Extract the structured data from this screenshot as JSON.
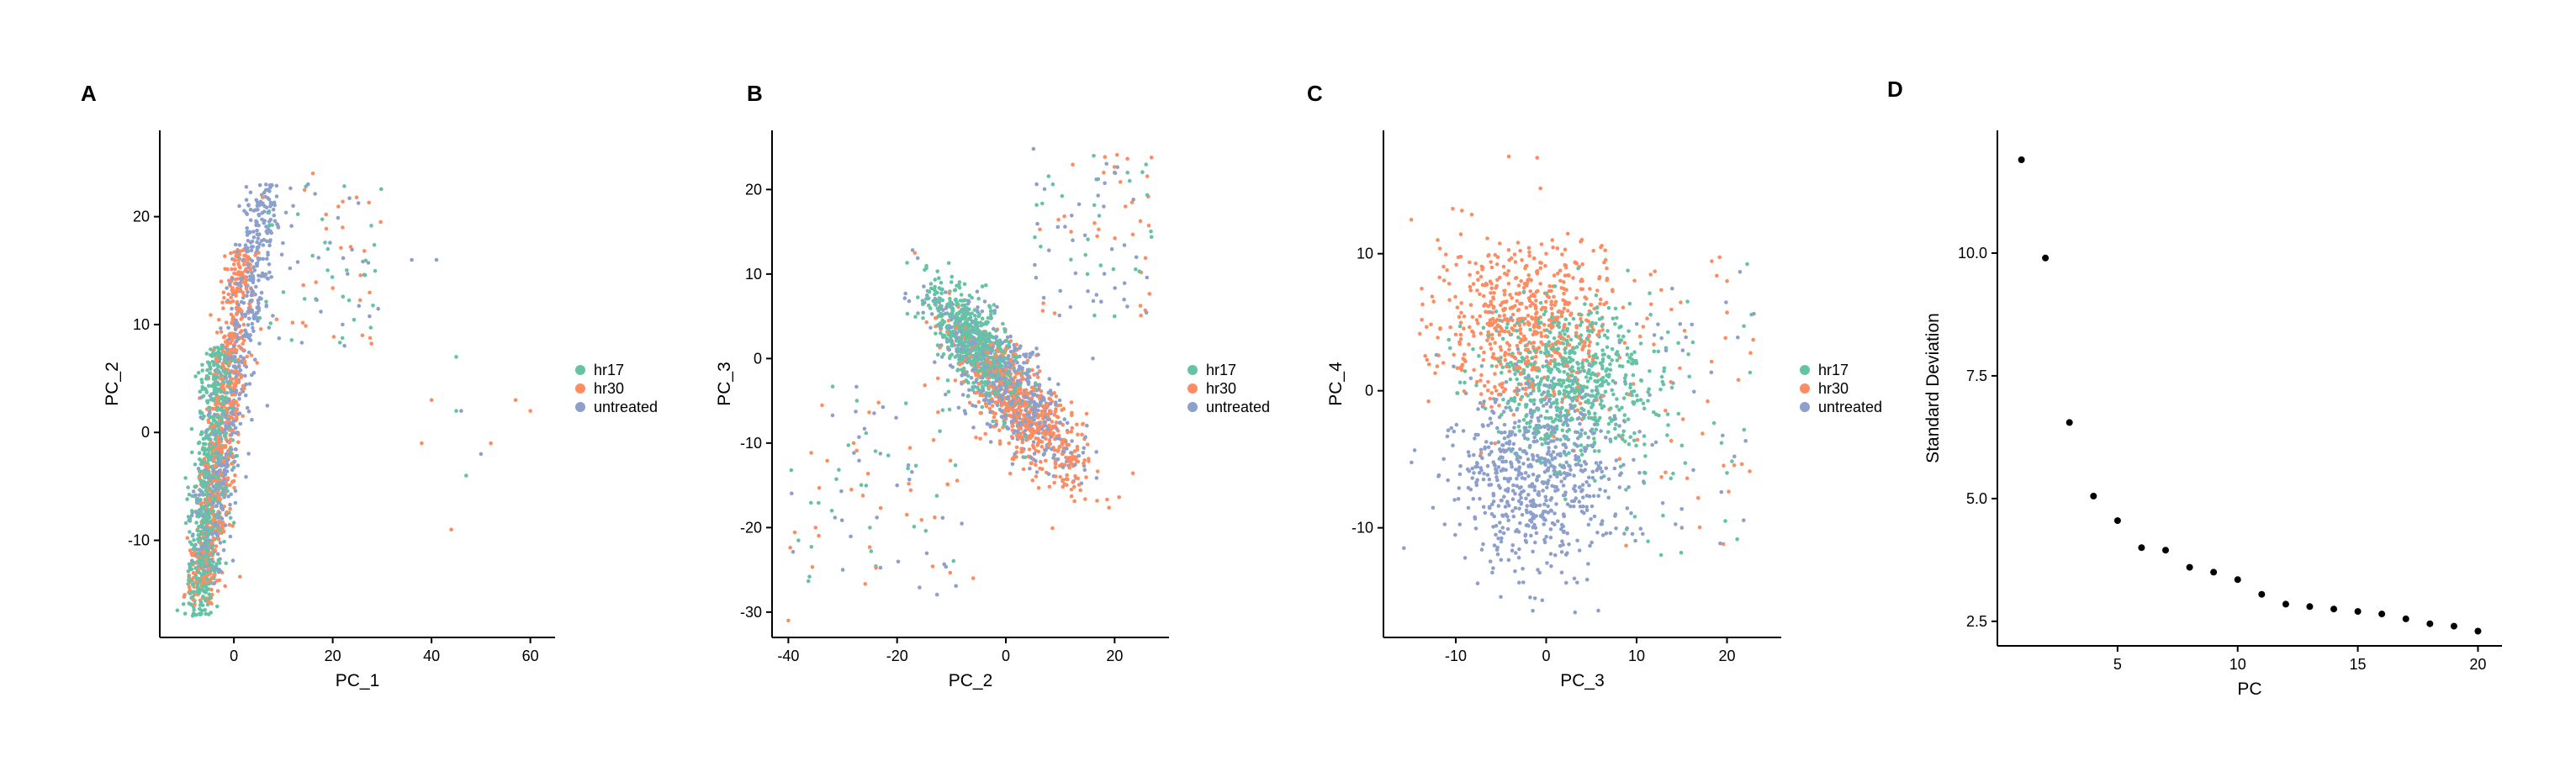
{
  "figure": {
    "panel_letters": [
      "A",
      "B",
      "C",
      "D"
    ]
  },
  "colors": {
    "hr17": "#66c2a5",
    "hr30": "#fc8d62",
    "untreated": "#8da0cb",
    "elbow_point": "#000000"
  },
  "chart_data": [
    {
      "type": "scatter",
      "panel": "A",
      "xlabel": "PC_1",
      "ylabel": "PC_2",
      "xlim": [
        -15,
        65
      ],
      "ylim": [
        -19,
        28
      ],
      "xticks": [
        0,
        20,
        40,
        60
      ],
      "yticks": [
        -10,
        0,
        10,
        20
      ],
      "legend": {
        "placement": "right",
        "entries": [
          "hr17",
          "hr30",
          "untreated"
        ]
      },
      "grid": false,
      "series": [
        {
          "name": "hr17",
          "n_points": 700,
          "points": [
            [
              -6,
              -8
            ],
            [
              -5,
              -12
            ],
            [
              -4,
              -4
            ],
            [
              -3,
              0
            ],
            [
              -5,
              -15
            ],
            [
              -7,
              -10
            ],
            [
              -2,
              2
            ],
            [
              -4,
              -6
            ],
            [
              -6,
              -2
            ],
            [
              -5,
              -9
            ],
            [
              -3,
              4
            ],
            [
              -6,
              -13
            ],
            [
              10,
              13
            ],
            [
              19,
              17
            ],
            [
              45,
              2
            ],
            [
              47,
              -4
            ],
            [
              45,
              7
            ]
          ]
        },
        {
          "name": "hr30",
          "n_points": 650,
          "points": [
            [
              -8,
              -16
            ],
            [
              -4,
              -6
            ],
            [
              -3,
              -1
            ],
            [
              -2,
              4
            ],
            [
              -1,
              9
            ],
            [
              0,
              13
            ],
            [
              1,
              16
            ],
            [
              -2,
              6
            ],
            [
              -5,
              -12
            ],
            [
              38,
              -1
            ],
            [
              40,
              3
            ],
            [
              52,
              -1
            ],
            [
              57,
              3
            ],
            [
              60,
              2
            ],
            [
              44,
              -9
            ],
            [
              22,
              19
            ],
            [
              16,
              24
            ],
            [
              26,
              9
            ]
          ]
        },
        {
          "name": "untreated",
          "n_points": 650,
          "points": [
            [
              -5,
              -10
            ],
            [
              -3,
              -3
            ],
            [
              -1,
              3
            ],
            [
              0,
              8
            ],
            [
              2,
              12
            ],
            [
              5,
              16
            ],
            [
              9,
              19
            ],
            [
              12,
              21
            ],
            [
              -4,
              -14
            ],
            [
              36,
              16
            ],
            [
              41,
              16
            ],
            [
              46,
              2
            ],
            [
              50,
              -2
            ],
            [
              15,
              23
            ],
            [
              22,
              10
            ]
          ]
        }
      ]
    },
    {
      "type": "scatter",
      "panel": "B",
      "xlabel": "PC_2",
      "ylabel": "PC_3",
      "xlim": [
        -43,
        30
      ],
      "ylim": [
        -33,
        27
      ],
      "xticks": [
        -40,
        -20,
        0,
        20
      ],
      "yticks": [
        -30,
        -20,
        -10,
        0,
        10,
        20
      ],
      "legend": {
        "placement": "right",
        "entries": [
          "hr17",
          "hr30",
          "untreated"
        ]
      },
      "grid": false,
      "series": [
        {
          "name": "hr17",
          "n_points": 700,
          "points": [
            [
              -8,
              4
            ],
            [
              -6,
              1
            ],
            [
              -4,
              -2
            ],
            [
              -10,
              6
            ],
            [
              -2,
              -4
            ],
            [
              0,
              0
            ],
            [
              -12,
              3
            ],
            [
              -5,
              5
            ],
            [
              -3,
              2
            ],
            [
              -25,
              -20
            ],
            [
              -18,
              -13
            ],
            [
              -32,
              -18
            ],
            [
              15,
              10
            ],
            [
              20,
              5
            ]
          ]
        },
        {
          "name": "hr30",
          "n_points": 650,
          "points": [
            [
              0,
              -6
            ],
            [
              4,
              -8
            ],
            [
              8,
              -10
            ],
            [
              12,
              -12
            ],
            [
              2,
              -4
            ],
            [
              -4,
              -2
            ],
            [
              10,
              -14
            ],
            [
              14,
              -9
            ],
            [
              6,
              -11
            ],
            [
              -40,
              -31
            ],
            [
              -35,
              -20
            ],
            [
              -28,
              -10
            ],
            [
              18,
              22
            ],
            [
              22,
              18
            ],
            [
              12,
              15
            ],
            [
              -6,
              -26
            ]
          ]
        },
        {
          "name": "untreated",
          "n_points": 650,
          "points": [
            [
              -6,
              2
            ],
            [
              -2,
              -2
            ],
            [
              3,
              -5
            ],
            [
              -9,
              3
            ],
            [
              5,
              -7
            ],
            [
              1,
              -3
            ],
            [
              -30,
              -25
            ],
            [
              -20,
              -15
            ],
            [
              18,
              18
            ],
            [
              20,
              22
            ],
            [
              24,
              12
            ],
            [
              10,
              8
            ],
            [
              16,
              0
            ]
          ]
        }
      ]
    },
    {
      "type": "scatter",
      "panel": "C",
      "xlabel": "PC_3",
      "ylabel": "PC_4",
      "xlim": [
        -18,
        26
      ],
      "ylim": [
        -18,
        19
      ],
      "xticks": [
        -10,
        0,
        10,
        20
      ],
      "yticks": [
        -10,
        0,
        10
      ],
      "legend": {
        "placement": "right",
        "entries": [
          "hr17",
          "hr30",
          "untreated"
        ]
      },
      "grid": false,
      "series": [
        {
          "name": "hr17",
          "n_points": 650,
          "points": [
            [
              2,
              0
            ],
            [
              4,
              2
            ],
            [
              -1,
              1
            ],
            [
              6,
              -1
            ],
            [
              0,
              3
            ],
            [
              8,
              4
            ],
            [
              5,
              -2
            ],
            [
              -3,
              -1
            ],
            [
              10,
              2
            ],
            [
              15,
              -4
            ],
            [
              20,
              -6
            ]
          ]
        },
        {
          "name": "hr30",
          "n_points": 650,
          "points": [
            [
              -4,
              7
            ],
            [
              -2,
              5
            ],
            [
              0,
              3
            ],
            [
              2,
              6
            ],
            [
              -6,
              9
            ],
            [
              4,
              8
            ],
            [
              -8,
              4
            ],
            [
              0,
              10
            ],
            [
              -1,
              17
            ],
            [
              -12,
              11
            ],
            [
              20,
              8
            ]
          ]
        },
        {
          "name": "untreated",
          "n_points": 700,
          "points": [
            [
              -2,
              -5
            ],
            [
              0,
              -8
            ],
            [
              -4,
              -3
            ],
            [
              2,
              -6
            ],
            [
              -6,
              -9
            ],
            [
              1,
              -12
            ],
            [
              -3,
              -14
            ],
            [
              5,
              -4
            ],
            [
              -8,
              -6
            ],
            [
              15,
              -10
            ]
          ]
        }
      ]
    },
    {
      "type": "scatter",
      "panel": "D",
      "xlabel": "PC",
      "ylabel": "Standard Deviation",
      "xlim": [
        0,
        21
      ],
      "ylim": [
        2.0,
        12.5
      ],
      "xticks": [
        5,
        10,
        15,
        20
      ],
      "yticks": [
        2.5,
        5.0,
        7.5,
        10.0
      ],
      "ytick_labels": [
        "2.5",
        "5.0",
        "7.5",
        "10.0"
      ],
      "grid": false,
      "x": [
        1,
        2,
        3,
        4,
        5,
        6,
        7,
        8,
        9,
        10,
        11,
        12,
        13,
        14,
        15,
        16,
        17,
        18,
        19,
        20
      ],
      "y": [
        11.9,
        9.9,
        6.55,
        5.05,
        4.55,
        4.0,
        3.95,
        3.6,
        3.5,
        3.35,
        3.05,
        2.85,
        2.8,
        2.75,
        2.7,
        2.65,
        2.55,
        2.45,
        2.4,
        2.3
      ]
    }
  ]
}
